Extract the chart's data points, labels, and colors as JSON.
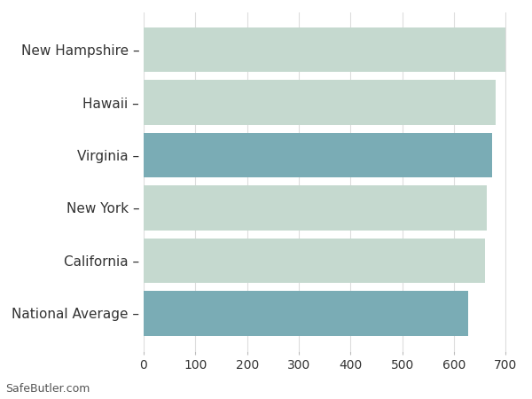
{
  "categories": [
    "National Average",
    "California",
    "New York",
    "Virginia",
    "Hawaii",
    "New Hampshire"
  ],
  "values": [
    628,
    660,
    664,
    673,
    681,
    700
  ],
  "bar_colors": [
    "#7aacb5",
    "#c5d9cf",
    "#c5d9cf",
    "#7aacb5",
    "#c5d9cf",
    "#c5d9cf"
  ],
  "xlim": [
    0,
    720
  ],
  "xticks": [
    0,
    100,
    200,
    300,
    400,
    500,
    600,
    700
  ],
  "background_color": "#ffffff",
  "grid_color": "#dddddd",
  "bar_height": 0.85,
  "footnote": "SafeButler.com",
  "label_fontsize": 11,
  "tick_fontsize": 10,
  "tick_label_color": "#333333",
  "footnote_fontsize": 9,
  "ylabel_dash": " –"
}
